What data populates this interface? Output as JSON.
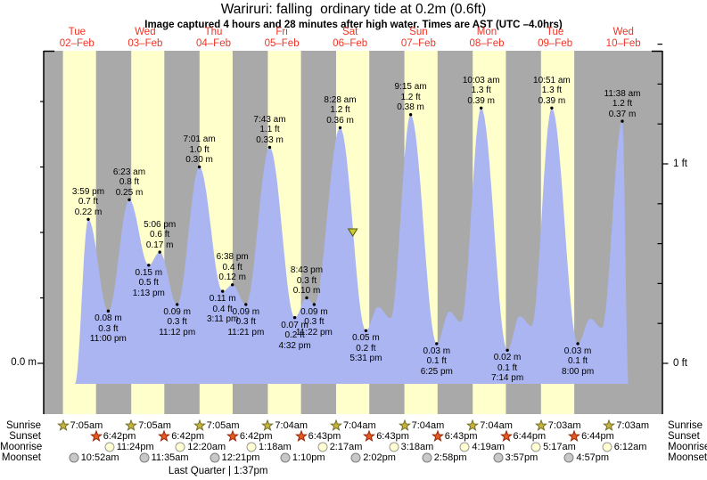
{
  "title": "Wariruri: falling  ordinary tide at 0.2m (0.6ft)",
  "subtitle": "Image captured 4 hours and 28 minutes after high water. Times are AST (UTC –4.0hrs)",
  "axis": {
    "left_zero_label": "0.0 m",
    "right_one_ft_label": "1 ft",
    "right_zero_ft_label": "0 ft"
  },
  "row_labels": {
    "sunrise": "Sunrise",
    "sunset": "Sunset",
    "moonrise": "Moonrise",
    "moonset": "Moonset"
  },
  "moon_phase": {
    "label": "Last Quarter | 1:37pm",
    "t": 61.617
  },
  "icons": {
    "sunrise-star-icon": "olive-gold five point star",
    "sunset-star-icon": "orange five point star",
    "moonrise-circle-icon": "pale yellow circle",
    "moonset-circle-icon": "gray circle",
    "capture-time-triangle-icon": "yellow downward triangle marking capture time"
  },
  "colors": {
    "night_band": "#a9a9a9",
    "day_band": "#ffffcc",
    "tide_fill": "#aab5f2",
    "day_label_red": "#ee3425",
    "axis_black": "#000000",
    "marker_fill": "#cccc33",
    "marker_stroke": "#555500",
    "sunrise_star_fill": "#c9b23c",
    "sunrise_star_stroke": "#71712c",
    "sunset_star_fill": "#e8591c",
    "sunset_star_stroke": "#93290e",
    "moonrise_fill": "#ffffd2",
    "moonrise_stroke": "#999999",
    "moonset_fill": "#c8c8c8",
    "moonset_stroke": "#7d7d7d"
  },
  "chart_data": {
    "type": "area",
    "title": "Wariruri: falling  ordinary tide at 0.2m (0.6ft)",
    "x_unit": "hours since 02-Feb 00:00 (AST)",
    "days": [
      {
        "dow": "Tue",
        "date": "02–Feb"
      },
      {
        "dow": "Wed",
        "date": "03–Feb"
      },
      {
        "dow": "Thu",
        "date": "04–Feb"
      },
      {
        "dow": "Fri",
        "date": "05–Feb"
      },
      {
        "dow": "Sat",
        "date": "06–Feb"
      },
      {
        "dow": "Sun",
        "date": "07–Feb"
      },
      {
        "dow": "Mon",
        "date": "08–Feb"
      },
      {
        "dow": "Tue",
        "date": "09–Feb"
      },
      {
        "dow": "Wed",
        "date": "10–Feb"
      }
    ],
    "y_axis": {
      "left": {
        "label": "0.0 m",
        "ticks_m": [
          0,
          0.1,
          0.2,
          0.3,
          0.4
        ]
      },
      "right": {
        "labels": [
          {
            "text": "1 ft",
            "ft": 1
          },
          {
            "text": "0 ft",
            "ft": 0
          }
        ],
        "ticks_ft": [
          0,
          0.2,
          0.4,
          0.6,
          0.8,
          1.0,
          1.2,
          1.4,
          1.6
        ]
      },
      "range_m": [
        -0.05,
        0.48
      ]
    },
    "tide_events": [
      {
        "day": 0,
        "type": "high",
        "t": 15.983,
        "time": "3:59 pm",
        "height_ft": "0.7 ft",
        "height_m": "0.22 m",
        "value_m": 0.22,
        "lines": [
          "3:59 pm",
          "0.7 ft",
          "0.22 m"
        ]
      },
      {
        "day": 0,
        "type": "low",
        "t": 23.0,
        "time": "11:00 pm",
        "height_ft": "0.3 ft",
        "height_m": "0.08 m",
        "value_m": 0.08,
        "lines": [
          "0.08 m",
          "0.3 ft",
          "11:00 pm"
        ]
      },
      {
        "day": 1,
        "type": "high",
        "t": 30.383,
        "time": "6:23 am",
        "height_ft": "0.8 ft",
        "height_m": "0.25 m",
        "value_m": 0.25,
        "lines": [
          "6:23 am",
          "0.8 ft",
          "0.25 m"
        ]
      },
      {
        "day": 1,
        "type": "low",
        "t": 37.217,
        "time": "1:13 pm",
        "height_ft": "0.5 ft",
        "height_m": "0.15 m",
        "value_m": 0.15,
        "lines": [
          "0.15 m",
          "0.5 ft",
          "1:13 pm"
        ]
      },
      {
        "day": 1,
        "type": "high",
        "t": 41.1,
        "time": "5:06 pm",
        "height_ft": "0.6 ft",
        "height_m": "0.17 m",
        "value_m": 0.17,
        "lines": [
          "5:06 pm",
          "0.6 ft",
          "0.17 m"
        ]
      },
      {
        "day": 1,
        "type": "low",
        "t": 47.2,
        "time": "11:12 pm",
        "height_ft": "0.3 ft",
        "height_m": "0.09 m",
        "value_m": 0.09,
        "lines": [
          "0.09 m",
          "0.3 ft",
          "11:12 pm"
        ]
      },
      {
        "day": 2,
        "type": "high",
        "t": 55.017,
        "time": "7:01 am",
        "height_ft": "1.0 ft",
        "height_m": "0.30 m",
        "value_m": 0.3,
        "lines": [
          "7:01 am",
          "1.0 ft",
          "0.30 m"
        ]
      },
      {
        "day": 2,
        "type": "low",
        "t": 63.183,
        "time": "3:11 pm",
        "height_ft": "0.4 ft",
        "height_m": "0.11 m",
        "value_m": 0.11,
        "lines": [
          "0.11 m",
          "0.4 ft",
          "3:11 pm"
        ]
      },
      {
        "day": 2,
        "type": "high",
        "t": 66.633,
        "time": "6:38 pm",
        "height_ft": "0.4 ft",
        "height_m": "0.12 m",
        "value_m": 0.12,
        "lines": [
          "6:38 pm",
          "0.4 ft",
          "0.12 m"
        ]
      },
      {
        "day": 2,
        "type": "low",
        "t": 71.35,
        "time": "11:21 pm",
        "height_ft": "0.3 ft",
        "height_m": "0.09 m",
        "value_m": 0.09,
        "lines": [
          "0.09 m",
          "0.3 ft",
          "11:21 pm"
        ]
      },
      {
        "day": 3,
        "type": "high",
        "t": 79.717,
        "time": "7:43 am",
        "height_ft": "1.1 ft",
        "height_m": "0.33 m",
        "value_m": 0.33,
        "lines": [
          "7:43 am",
          "1.1 ft",
          "0.33 m"
        ]
      },
      {
        "day": 3,
        "type": "low",
        "t": 88.533,
        "time": "4:32 pm",
        "height_ft": "0.2 ft",
        "height_m": "0.07 m",
        "value_m": 0.07,
        "lines": [
          "0.07 m",
          "0.2 ft",
          "4:32 pm"
        ]
      },
      {
        "day": 3,
        "type": "high",
        "t": 92.717,
        "time": "8:43 pm",
        "height_ft": "0.3 ft",
        "height_m": "0.10 m",
        "value_m": 0.1,
        "lines": [
          "8:43 pm",
          "0.3 ft",
          "0.10 m"
        ]
      },
      {
        "day": 3,
        "type": "low",
        "t": 95.367,
        "time": "11:22 pm",
        "height_ft": "0.3 ft",
        "height_m": "0.09 m",
        "value_m": 0.09,
        "lines": [
          "0.09 m",
          "0.3 ft",
          "11:22 pm"
        ]
      },
      {
        "day": 4,
        "type": "high",
        "t": 104.467,
        "time": "8:28 am",
        "height_ft": "1.2 ft",
        "height_m": "0.36 m",
        "value_m": 0.36,
        "lines": [
          "8:28 am",
          "1.2 ft",
          "0.36 m"
        ]
      },
      {
        "day": 4,
        "type": "low",
        "t": 113.517,
        "time": "5:31 pm",
        "height_ft": "0.2 ft",
        "height_m": "0.05 m",
        "value_m": 0.05,
        "lines": [
          "0.05 m",
          "0.2 ft",
          "5:31 pm"
        ]
      },
      {
        "day": 5,
        "type": "high",
        "t": 129.25,
        "time": "9:15 am",
        "height_ft": "1.2 ft",
        "height_m": "0.38 m",
        "value_m": 0.38,
        "lines": [
          "9:15 am",
          "1.2 ft",
          "0.38 m"
        ]
      },
      {
        "day": 5,
        "type": "low",
        "t": 138.417,
        "time": "6:25 pm",
        "height_ft": "0.1 ft",
        "height_m": "0.03 m",
        "value_m": 0.03,
        "lines": [
          "0.03 m",
          "0.1 ft",
          "6:25 pm"
        ]
      },
      {
        "day": 6,
        "type": "high",
        "t": 154.05,
        "time": "10:03 am",
        "height_ft": "1.3 ft",
        "height_m": "0.39 m",
        "value_m": 0.39,
        "lines": [
          "10:03 am",
          "1.3 ft",
          "0.39 m"
        ]
      },
      {
        "day": 6,
        "type": "low",
        "t": 163.233,
        "time": "7:14 pm",
        "height_ft": "0.1 ft",
        "height_m": "0.02 m",
        "value_m": 0.02,
        "lines": [
          "0.02 m",
          "0.1 ft",
          "7:14 pm"
        ]
      },
      {
        "day": 7,
        "type": "high",
        "t": 178.85,
        "time": "10:51 am",
        "height_ft": "1.3 ft",
        "height_m": "0.39 m",
        "value_m": 0.39,
        "lines": [
          "10:51 am",
          "1.3 ft",
          "0.39 m"
        ]
      },
      {
        "day": 7,
        "type": "low",
        "t": 188.0,
        "time": "8:00 pm",
        "height_ft": "0.1 ft",
        "height_m": "0.03 m",
        "value_m": 0.03,
        "lines": [
          "0.03 m",
          "0.1 ft",
          "8:00 pm"
        ]
      },
      {
        "day": 8,
        "type": "high",
        "t": 203.633,
        "time": "11:38 am",
        "height_ft": "1.2 ft",
        "height_m": "0.37 m",
        "value_m": 0.37,
        "lines": [
          "11:38 am",
          "1.2 ft",
          "0.37 m"
        ]
      }
    ],
    "curve_anchors": [
      [
        11.3,
        -0.031
      ],
      [
        15.983,
        0.22
      ],
      [
        23.0,
        0.08
      ],
      [
        30.383,
        0.25
      ],
      [
        37.217,
        0.15
      ],
      [
        41.1,
        0.17
      ],
      [
        47.2,
        0.09
      ],
      [
        55.017,
        0.3
      ],
      [
        63.183,
        0.11
      ],
      [
        66.633,
        0.12
      ],
      [
        71.35,
        0.09
      ],
      [
        79.717,
        0.33
      ],
      [
        88.533,
        0.07
      ],
      [
        92.717,
        0.1
      ],
      [
        95.367,
        0.09
      ],
      [
        104.467,
        0.36
      ],
      [
        113.517,
        0.05
      ],
      [
        117.8,
        0.086
      ],
      [
        122.2,
        0.069
      ],
      [
        129.25,
        0.38
      ],
      [
        138.417,
        0.03
      ],
      [
        142.9,
        0.079
      ],
      [
        146.9,
        0.063
      ],
      [
        154.05,
        0.39
      ],
      [
        163.233,
        0.02
      ],
      [
        167.6,
        0.072
      ],
      [
        171.7,
        0.057
      ],
      [
        178.85,
        0.39
      ],
      [
        188.0,
        0.03
      ],
      [
        192.4,
        0.068
      ],
      [
        196.4,
        0.054
      ],
      [
        203.633,
        0.37
      ],
      [
        205.8,
        -0.031
      ]
    ],
    "capture_marker": {
      "t": 108.93,
      "value_m": 0.2
    },
    "sun_moon": {
      "sunrise": [
        {
          "time": "7:05am",
          "t": 7.083
        },
        {
          "time": "7:05am",
          "t": 31.083
        },
        {
          "time": "7:05am",
          "t": 55.083
        },
        {
          "time": "7:04am",
          "t": 79.067
        },
        {
          "time": "7:04am",
          "t": 103.067
        },
        {
          "time": "7:04am",
          "t": 127.067
        },
        {
          "time": "7:04am",
          "t": 151.067
        },
        {
          "time": "7:03am",
          "t": 175.05
        },
        {
          "time": "7:03am",
          "t": 199.05
        }
      ],
      "sunset": [
        {
          "time": "6:42pm",
          "t": 18.7
        },
        {
          "time": "6:42pm",
          "t": 42.7
        },
        {
          "time": "6:42pm",
          "t": 66.7
        },
        {
          "time": "6:43pm",
          "t": 90.717
        },
        {
          "time": "6:43pm",
          "t": 114.717
        },
        {
          "time": "6:43pm",
          "t": 138.717
        },
        {
          "time": "6:44pm",
          "t": 162.733
        },
        {
          "time": "6:44pm",
          "t": 186.733
        }
      ],
      "moonrise": [
        {
          "time": "11:24pm",
          "t": 23.4
        },
        {
          "time": "12:20am",
          "t": 48.333
        },
        {
          "time": "1:18am",
          "t": 73.3
        },
        {
          "time": "2:17am",
          "t": 98.283
        },
        {
          "time": "3:18am",
          "t": 123.3
        },
        {
          "time": "4:19am",
          "t": 148.317
        },
        {
          "time": "5:17am",
          "t": 173.283
        },
        {
          "time": "6:12am",
          "t": 198.2
        }
      ],
      "moonset": [
        {
          "time": "10:52am",
          "t": 10.867
        },
        {
          "time": "11:35am",
          "t": 35.583
        },
        {
          "time": "12:21pm",
          "t": 60.35
        },
        {
          "time": "1:10pm",
          "t": 85.167
        },
        {
          "time": "2:02pm",
          "t": 110.033
        },
        {
          "time": "2:58pm",
          "t": 134.967
        },
        {
          "time": "3:57pm",
          "t": 159.95
        },
        {
          "time": "4:57pm",
          "t": 184.95
        }
      ]
    }
  }
}
